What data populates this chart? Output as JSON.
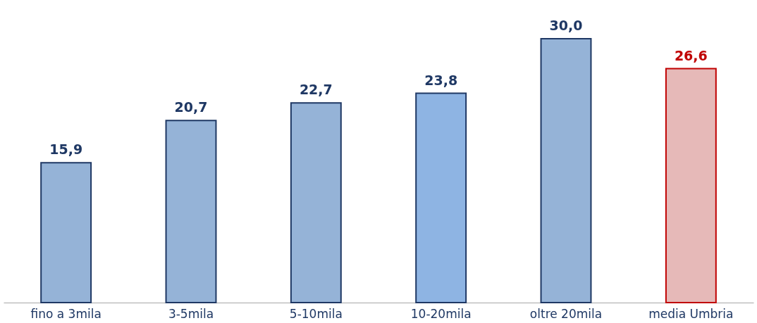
{
  "chart_data": {
    "type": "bar",
    "categories": [
      "fino a 3mila",
      "3-5mila",
      "5-10mila",
      "10-20mila",
      "oltre 20mila",
      "media Umbria"
    ],
    "values": [
      15.9,
      20.7,
      22.7,
      23.8,
      30.0,
      26.6
    ],
    "colors": [
      "#95b3d7",
      "#95b3d7",
      "#95b3d7",
      "#8eb4e3",
      "#95b3d7",
      "#e6b9b8"
    ],
    "value_labels": [
      "15,9",
      "20,7",
      "22,7",
      "23,8",
      "30,0",
      "26,6"
    ]
  }
}
